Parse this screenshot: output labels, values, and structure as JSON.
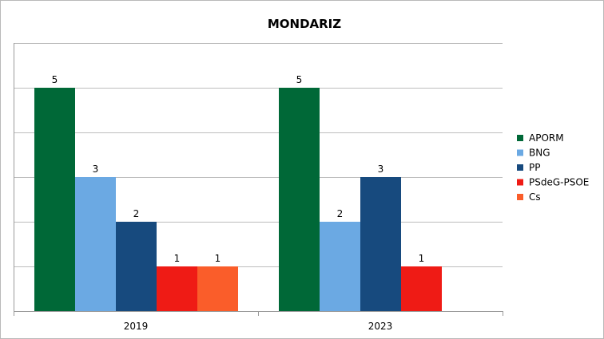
{
  "chart_data": {
    "type": "bar",
    "title": "MONDARIZ",
    "categories": [
      "2019",
      "2023"
    ],
    "series": [
      {
        "name": "APORM",
        "color": "#006837",
        "values": [
          5,
          5
        ]
      },
      {
        "name": "BNG",
        "color": "#6ba9e3",
        "values": [
          3,
          2
        ]
      },
      {
        "name": "PP",
        "color": "#174a7e",
        "values": [
          2,
          3
        ]
      },
      {
        "name": "PSdeG-PSOE",
        "color": "#ef1b15",
        "values": [
          1,
          1
        ]
      },
      {
        "name": "Cs",
        "color": "#fa5d2a",
        "values": [
          1,
          null
        ]
      }
    ],
    "xlabel": "",
    "ylabel": "",
    "ylim": [
      0,
      6
    ],
    "grid": true,
    "legend": "right",
    "y_tick_labels_shown": false
  }
}
